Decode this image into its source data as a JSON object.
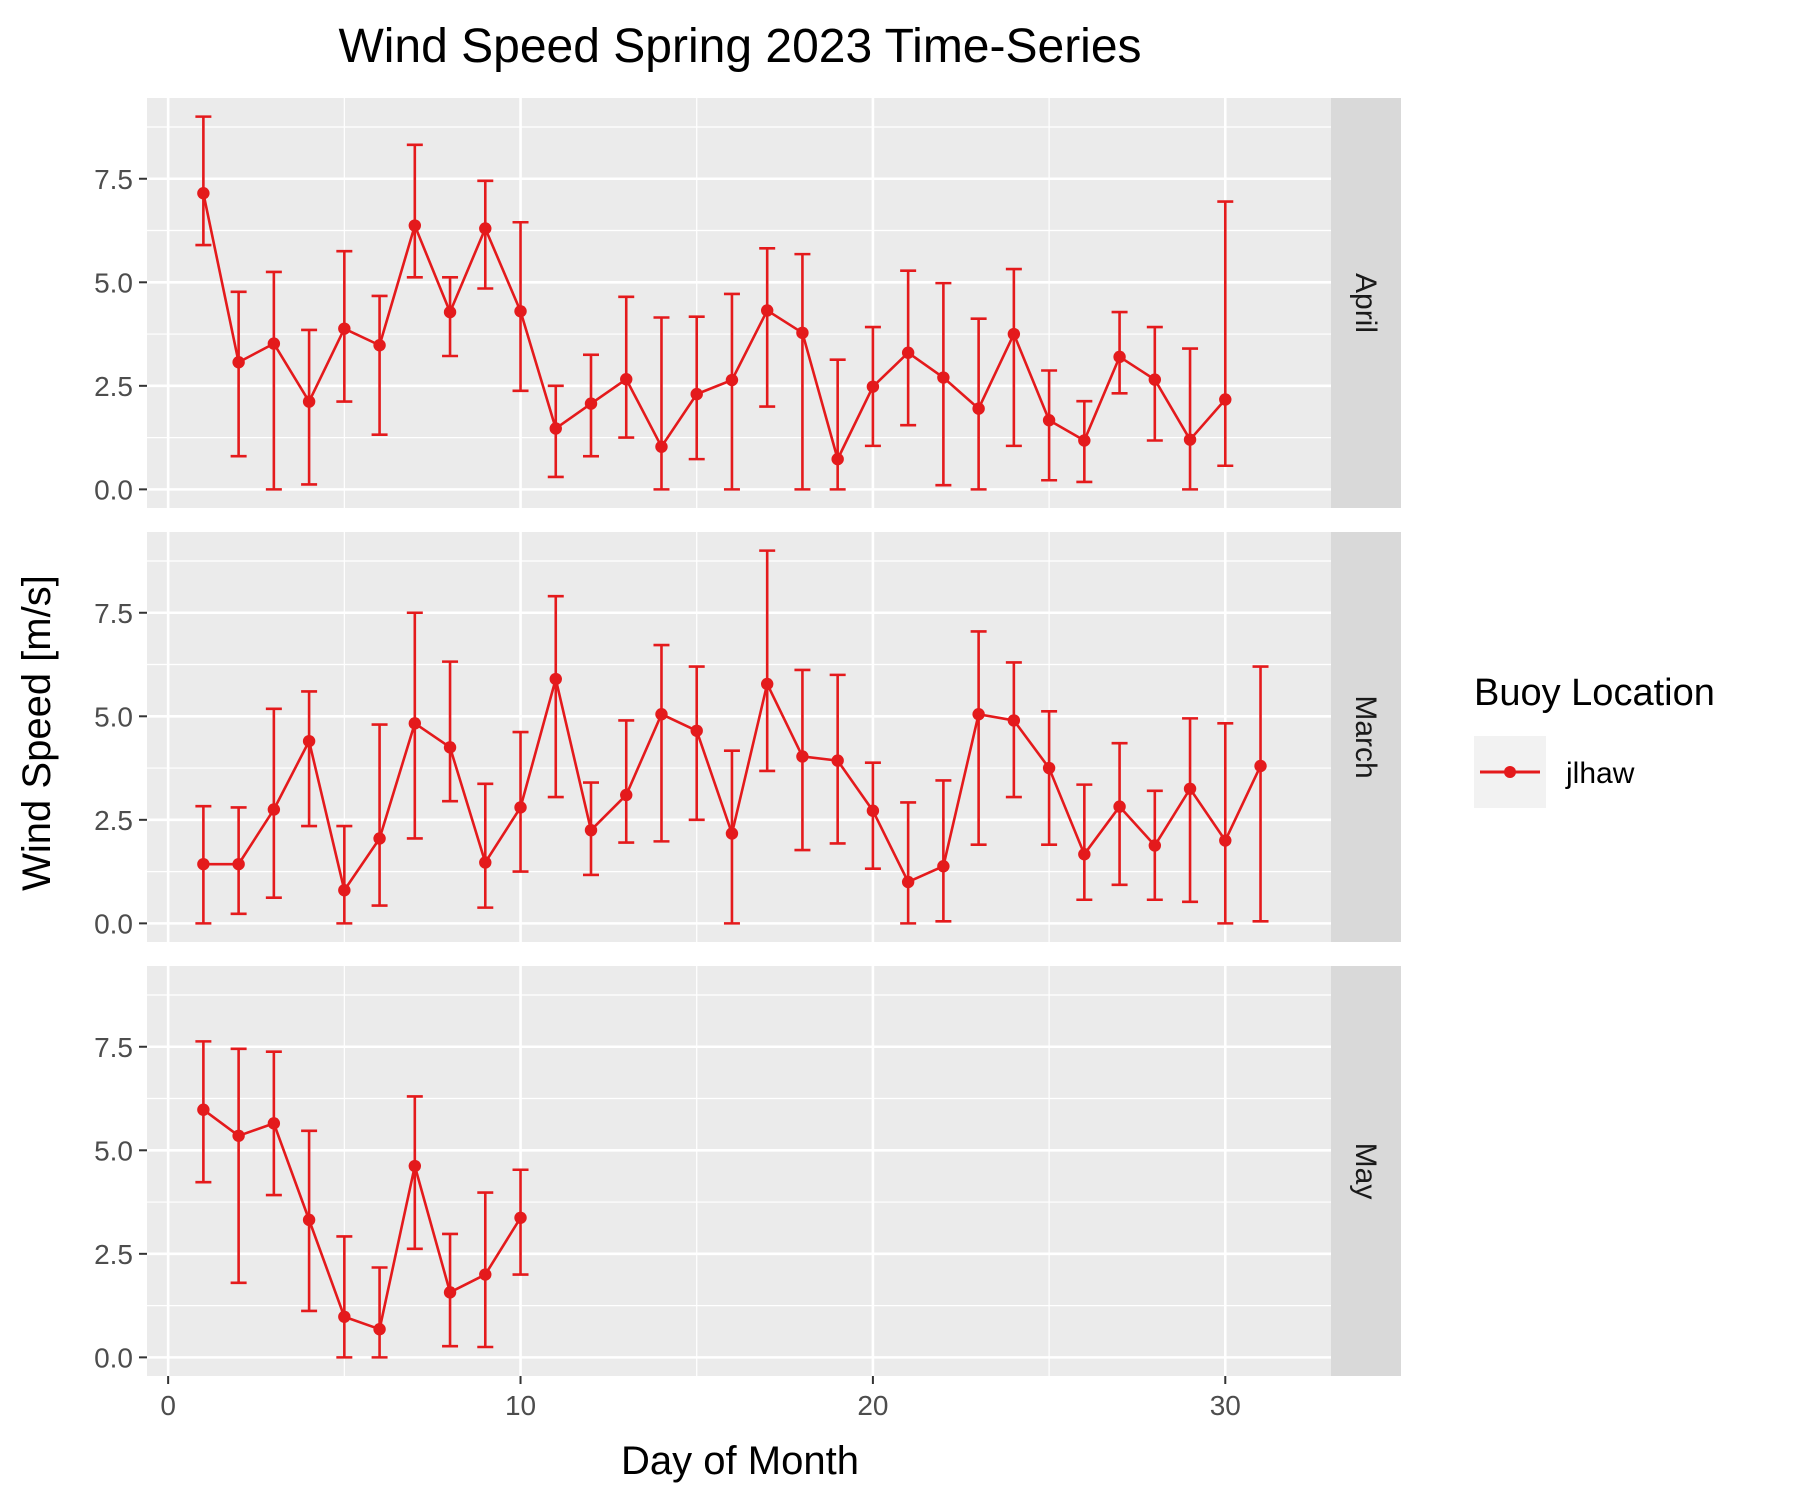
{
  "chart_data": {
    "type": "line",
    "title": "Wind Speed Spring 2023 Time-Series",
    "xlabel": "Day of Month",
    "ylabel": "Wind Speed [m/s]",
    "xlim": [
      -0.6,
      33
    ],
    "ylim": [
      -0.45,
      9.45
    ],
    "x_ticks": [
      0,
      10,
      20,
      30
    ],
    "y_ticks": [
      0,
      2.5,
      5,
      7.5
    ],
    "x_tick_labels": [
      "0",
      "10",
      "20",
      "30"
    ],
    "y_tick_labels": [
      "0.0",
      "2.5",
      "5.0",
      "7.5"
    ],
    "grid": true,
    "legend": {
      "title": "Buoy Location",
      "placement": "right",
      "entries": [
        "jlhaw"
      ]
    },
    "series_color": "#e41a1c",
    "panel_background": "#ebebeb",
    "strip_background": "#d9d9d9",
    "panels": [
      {
        "label": "April",
        "series": [
          {
            "name": "jlhaw",
            "x": [
              1,
              2,
              3,
              4,
              5,
              6,
              7,
              8,
              9,
              10,
              11,
              12,
              13,
              14,
              15,
              16,
              17,
              18,
              19,
              20,
              21,
              22,
              23,
              24,
              25,
              26,
              27,
              28,
              29,
              30
            ],
            "y": [
              7.15,
              3.07,
              3.52,
              2.12,
              3.88,
              3.48,
              6.37,
              4.28,
              6.3,
              4.3,
              1.47,
              2.07,
              2.66,
              1.03,
              2.3,
              2.64,
              4.32,
              3.78,
              0.73,
              2.48,
              3.3,
              2.7,
              1.95,
              3.75,
              1.67,
              1.18,
              3.2,
              2.65,
              1.2,
              2.17
            ],
            "ymin": [
              5.9,
              0.8,
              0.0,
              0.12,
              2.12,
              1.32,
              5.12,
              3.22,
              4.85,
              2.38,
              0.3,
              0.8,
              1.25,
              0.0,
              0.73,
              0.0,
              2.0,
              0.0,
              0.0,
              1.05,
              1.55,
              0.1,
              0.0,
              1.05,
              0.22,
              0.18,
              2.32,
              1.18,
              0.0,
              0.57
            ],
            "ymax": [
              9.0,
              4.77,
              5.25,
              3.85,
              5.75,
              4.67,
              8.32,
              5.12,
              7.45,
              6.45,
              2.5,
              3.25,
              4.65,
              4.15,
              4.17,
              4.72,
              5.82,
              5.68,
              3.13,
              3.92,
              5.28,
              4.98,
              4.12,
              5.32,
              2.87,
              2.13,
              4.28,
              3.92,
              3.4,
              6.95
            ]
          }
        ]
      },
      {
        "label": "March",
        "series": [
          {
            "name": "jlhaw",
            "x": [
              1,
              2,
              3,
              4,
              5,
              6,
              7,
              8,
              9,
              10,
              11,
              12,
              13,
              14,
              15,
              16,
              17,
              18,
              19,
              20,
              21,
              22,
              23,
              24,
              25,
              26,
              27,
              28,
              29,
              30,
              31
            ],
            "y": [
              1.43,
              1.43,
              2.75,
              4.4,
              0.8,
              2.05,
              4.83,
              4.25,
              1.47,
              2.8,
              5.9,
              2.25,
              3.1,
              5.05,
              4.65,
              2.17,
              5.78,
              4.03,
              3.93,
              2.72,
              1.0,
              1.38,
              5.05,
              4.9,
              3.75,
              1.67,
              2.82,
              1.88,
              3.25,
              2.0,
              3.8
            ],
            "ymin": [
              0.0,
              0.23,
              0.62,
              2.35,
              0.0,
              0.43,
              2.05,
              2.95,
              0.38,
              1.25,
              3.05,
              1.17,
              1.95,
              1.98,
              2.5,
              0.0,
              3.68,
              1.77,
              1.93,
              1.32,
              0.0,
              0.05,
              1.9,
              3.05,
              1.9,
              0.57,
              0.93,
              0.57,
              0.52,
              0.0,
              0.05
            ],
            "ymax": [
              2.83,
              2.8,
              5.18,
              5.6,
              2.35,
              4.8,
              7.5,
              6.32,
              3.37,
              4.62,
              7.9,
              3.4,
              4.9,
              6.72,
              6.2,
              4.17,
              9.0,
              6.12,
              6.0,
              3.88,
              2.92,
              3.45,
              7.05,
              6.3,
              5.12,
              3.35,
              4.35,
              3.2,
              4.95,
              4.83,
              6.2
            ]
          }
        ]
      },
      {
        "label": "May",
        "series": [
          {
            "name": "jlhaw",
            "x": [
              1,
              2,
              3,
              4,
              5,
              6,
              7,
              8,
              9,
              10
            ],
            "y": [
              5.98,
              5.35,
              5.65,
              3.32,
              0.98,
              0.68,
              4.62,
              1.57,
              2.0,
              3.37
            ],
            "ymin": [
              4.23,
              1.8,
              3.92,
              1.12,
              0.0,
              0.0,
              2.62,
              0.27,
              0.25,
              2.0
            ],
            "ymax": [
              7.63,
              7.45,
              7.38,
              5.47,
              2.92,
              2.17,
              6.3,
              2.98,
              3.98,
              4.53
            ]
          }
        ]
      }
    ]
  }
}
